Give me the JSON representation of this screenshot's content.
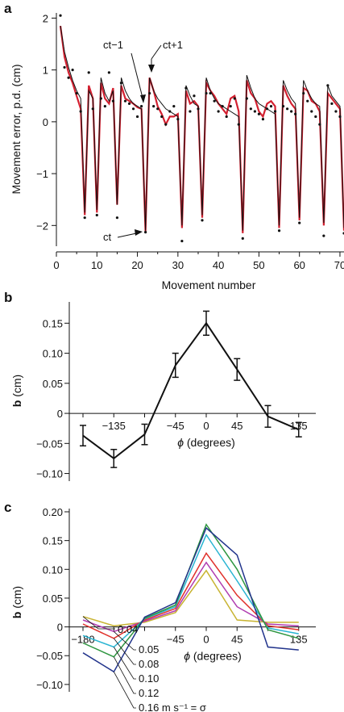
{
  "chart_data": [
    {
      "panel": "a",
      "type": "line",
      "ylabel": "Movement error, p.d. (cm)",
      "xlabel": "Movement number",
      "xlim": [
        0,
        71
      ],
      "ylim": [
        -2.4,
        2.1
      ],
      "xticks": [
        0,
        10,
        20,
        30,
        40,
        50,
        60,
        70
      ],
      "yticks": [
        -2,
        -1,
        0,
        1,
        2
      ],
      "annotations": [
        {
          "text": "ct−1",
          "x": 22,
          "y": 0.25
        },
        {
          "text": "ct+1",
          "x": 23,
          "y": 0.85
        },
        {
          "text": "ct",
          "x": 22,
          "y": -2.13
        }
      ],
      "series": [
        {
          "style": "red-line",
          "color": "#d32030",
          "x": [
            1,
            2,
            3,
            4,
            5,
            6,
            7,
            8,
            9,
            10,
            11,
            12,
            13,
            14,
            15,
            16,
            17,
            18,
            19,
            20,
            21,
            22,
            23,
            24,
            25,
            26,
            27,
            28,
            29,
            30,
            31,
            32,
            33,
            34,
            35,
            36,
            37,
            38,
            39,
            40,
            41,
            42,
            43,
            44,
            45,
            46,
            47,
            48,
            49,
            50,
            51,
            52,
            53,
            54,
            55,
            56,
            57,
            58,
            59,
            60,
            61,
            62,
            63,
            64,
            65,
            66,
            67,
            68,
            69,
            70,
            71
          ],
          "y": [
            1.85,
            1.25,
            0.95,
            0.75,
            0.5,
            0.25,
            -1.8,
            0.7,
            0.45,
            -1.75,
            0.75,
            0.45,
            0.35,
            0.65,
            -1.6,
            0.7,
            0.45,
            0.4,
            0.35,
            0.28,
            0.25,
            -2.13,
            0.85,
            0.6,
            0.3,
            0.15,
            -0.05,
            0.1,
            0.1,
            0.15,
            -2.05,
            0.6,
            0.35,
            0.4,
            0.3,
            -1.85,
            0.75,
            0.6,
            0.5,
            0.35,
            0.25,
            0.15,
            0.45,
            0.5,
            0.2,
            -2.15,
            0.8,
            0.55,
            0.45,
            0.2,
            0.1,
            0.35,
            0.4,
            0.3,
            -2.05,
            0.7,
            0.5,
            0.35,
            0.25,
            -1.9,
            0.65,
            0.6,
            0.4,
            0.35,
            0.2,
            -2.0,
            0.55,
            0.45,
            0.35,
            0.25,
            -2.1
          ]
        },
        {
          "style": "black-fit",
          "color": "#111111",
          "x": [
            1,
            2,
            3,
            4,
            5,
            6,
            7,
            8,
            9,
            10,
            11,
            12,
            13,
            14,
            15,
            16,
            17,
            18,
            19,
            20,
            21,
            22,
            23,
            24,
            25,
            26,
            27,
            28,
            29,
            30,
            31,
            32,
            33,
            34,
            35,
            36,
            37,
            38,
            39,
            40,
            41,
            42,
            43,
            44,
            45,
            46,
            47,
            48,
            49,
            50,
            51,
            52,
            53,
            54,
            55,
            56,
            57,
            58,
            59,
            60,
            61,
            62,
            63,
            64,
            65,
            66,
            67,
            68,
            69,
            70,
            71
          ],
          "y": [
            1.85,
            1.35,
            1.05,
            0.8,
            0.6,
            0.45,
            -1.75,
            0.6,
            0.45,
            -1.7,
            0.85,
            0.55,
            0.4,
            0.6,
            -1.6,
            0.85,
            0.6,
            0.45,
            0.35,
            0.3,
            0.25,
            -2.1,
            0.85,
            0.6,
            0.45,
            0.35,
            0.25,
            0.2,
            0.15,
            0.1,
            -2.0,
            0.7,
            0.5,
            0.35,
            0.3,
            -1.8,
            0.85,
            0.6,
            0.45,
            0.35,
            0.3,
            0.25,
            0.2,
            0.15,
            0.1,
            -2.1,
            0.9,
            0.65,
            0.45,
            0.35,
            0.3,
            0.25,
            0.2,
            0.15,
            -2.0,
            0.8,
            0.6,
            0.45,
            0.35,
            -1.85,
            0.8,
            0.6,
            0.45,
            0.35,
            0.3,
            -1.95,
            0.7,
            0.5,
            0.4,
            0.3,
            -2.05
          ]
        },
        {
          "style": "dots",
          "color": "#111111",
          "x": [
            1,
            2,
            3,
            4,
            5,
            6,
            7,
            8,
            9,
            10,
            11,
            12,
            13,
            14,
            15,
            16,
            17,
            18,
            19,
            20,
            21,
            22,
            23,
            24,
            25,
            26,
            27,
            28,
            29,
            30,
            31,
            32,
            33,
            34,
            35,
            36,
            37,
            38,
            39,
            40,
            41,
            42,
            43,
            44,
            45,
            46,
            47,
            48,
            49,
            50,
            51,
            52,
            53,
            54,
            55,
            56,
            57,
            58,
            59,
            60,
            61,
            62,
            63,
            64,
            65,
            66,
            67,
            68,
            69,
            70,
            71
          ],
          "y": [
            2.05,
            1.05,
            0.85,
            1.0,
            0.55,
            0.2,
            -1.85,
            0.95,
            0.25,
            -1.8,
            0.45,
            0.3,
            0.95,
            0.4,
            -1.85,
            0.75,
            0.4,
            0.35,
            0.25,
            0.1,
            0.3,
            -2.13,
            0.55,
            0.3,
            0.25,
            0.1,
            -0.05,
            0.2,
            0.3,
            0.05,
            -2.3,
            0.65,
            0.2,
            0.5,
            0.25,
            -1.9,
            0.55,
            0.55,
            0.4,
            0.2,
            0.3,
            0.1,
            0.3,
            0.45,
            -0.05,
            -2.25,
            0.45,
            0.25,
            0.2,
            0.15,
            0.05,
            0.25,
            0.3,
            0.2,
            -2.1,
            0.3,
            0.25,
            0.2,
            0.15,
            -1.95,
            0.55,
            0.4,
            0.2,
            0.1,
            -0.05,
            -2.2,
            0.7,
            0.35,
            0.2,
            0.1,
            -2.15
          ]
        }
      ]
    },
    {
      "panel": "b",
      "type": "line",
      "ylabel_bold": "b",
      "ylabel_rest": " (cm)",
      "xlabel_sym": "ϕ",
      "xlabel_rest": " (degrees)",
      "xlim": [
        -200,
        160
      ],
      "ylim": [
        -0.11,
        0.18
      ],
      "xticks": [
        -135,
        -45,
        0,
        45,
        135
      ],
      "xtick_labels": [
        "−135",
        "−45",
        "0",
        "45",
        "135"
      ],
      "yticks": [
        0.15,
        0.1,
        0.05,
        0,
        -0.05,
        -0.1
      ],
      "ytick_labels": [
        "0.15",
        "0.10",
        "0.05",
        "0",
        "−0.05",
        "−0.10"
      ],
      "series": [
        {
          "color": "#111111",
          "x": [
            -180,
            -135,
            -90,
            -45,
            0,
            45,
            90,
            135
          ],
          "y": [
            -0.037,
            -0.075,
            -0.035,
            0.08,
            0.15,
            0.073,
            -0.005,
            -0.027
          ],
          "err": [
            0.017,
            0.015,
            0.017,
            0.02,
            0.02,
            0.018,
            0.018,
            0.012
          ]
        }
      ]
    },
    {
      "panel": "c",
      "type": "line",
      "ylabel_bold": "b",
      "ylabel_rest": " (cm)",
      "xlabel_sym": "ϕ",
      "xlabel_rest": " (degrees)",
      "xlim": [
        -200,
        160
      ],
      "ylim": [
        -0.11,
        0.2
      ],
      "xticks": [
        -180,
        -45,
        0,
        45,
        135
      ],
      "xtick_labels": [
        "−180",
        "−45",
        "0",
        "45",
        "135"
      ],
      "yticks": [
        0.2,
        0.15,
        0.1,
        0.05,
        0,
        -0.05,
        -0.1
      ],
      "ytick_labels": [
        "0.20",
        "0.15",
        "0.10",
        "0.05",
        "0",
        "−0.05",
        "−0.10"
      ],
      "series": [
        {
          "name": "0.04",
          "color": "#c8b432",
          "x": [
            -180,
            -135,
            -90,
            -45,
            0,
            45,
            90,
            135
          ],
          "y": [
            0.018,
            0.002,
            0.008,
            0.025,
            0.098,
            0.012,
            0.008,
            0.008
          ]
        },
        {
          "name": "0.05",
          "color": "#b03cb0",
          "x": [
            -180,
            -135,
            -90,
            -45,
            0,
            45,
            90,
            135
          ],
          "y": [
            0.012,
            -0.008,
            0.01,
            0.028,
            0.112,
            0.035,
            0.005,
            0.002
          ]
        },
        {
          "name": "0.08",
          "color": "#e0302a",
          "x": [
            -180,
            -135,
            -90,
            -45,
            0,
            45,
            90,
            135
          ],
          "y": [
            0.005,
            -0.02,
            0.012,
            0.032,
            0.128,
            0.055,
            0.002,
            -0.005
          ]
        },
        {
          "name": "0.10",
          "color": "#28b4d2",
          "x": [
            -180,
            -135,
            -90,
            -45,
            0,
            45,
            90,
            135
          ],
          "y": [
            -0.015,
            -0.035,
            0.014,
            0.035,
            0.16,
            0.08,
            -0.002,
            -0.012
          ]
        },
        {
          "name": "0.12",
          "color": "#2e9640",
          "x": [
            -180,
            -135,
            -90,
            -45,
            0,
            45,
            90,
            135
          ],
          "y": [
            -0.028,
            -0.052,
            0.015,
            0.038,
            0.178,
            0.1,
            -0.005,
            -0.02
          ]
        },
        {
          "name": "0.16 m s⁻¹ = σ",
          "color": "#22348c",
          "x": [
            -180,
            -135,
            -90,
            -45,
            0,
            45,
            90,
            135
          ],
          "y": [
            -0.045,
            -0.078,
            0.017,
            0.042,
            0.172,
            0.125,
            -0.035,
            -0.04
          ]
        }
      ]
    }
  ]
}
